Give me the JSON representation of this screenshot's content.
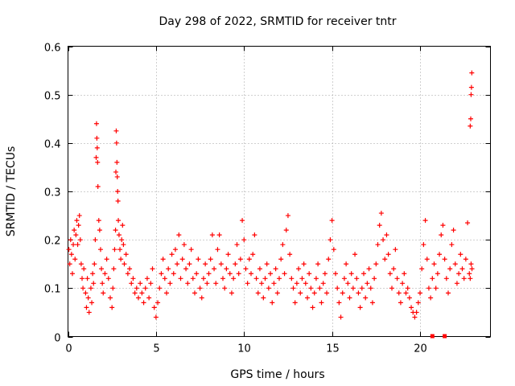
{
  "chart_data": {
    "type": "scatter",
    "title": "Day 298 of 2022, SRMTID for receiver tntr",
    "xlabel": "GPS time / hours",
    "ylabel": "SRMTID / TECUs",
    "xlim": [
      0,
      24
    ],
    "ylim": [
      0,
      0.6
    ],
    "xticks": [
      0,
      5,
      10,
      15,
      20
    ],
    "xtick_labels": [
      "0",
      "5",
      "10",
      "15",
      "20"
    ],
    "yticks": [
      0,
      0.1,
      0.2,
      0.3,
      0.4,
      0.5,
      0.6
    ],
    "ytick_labels": [
      "0",
      "0.1",
      "0.2",
      "0.3",
      "0.4",
      "0.5",
      "0.6"
    ],
    "grid": true,
    "marker": "+",
    "color": "#ff0000",
    "series": [
      {
        "name": "SRMTID",
        "points": [
          [
            0.05,
            0.18
          ],
          [
            0.1,
            0.15
          ],
          [
            0.15,
            0.2
          ],
          [
            0.2,
            0.17
          ],
          [
            0.25,
            0.13
          ],
          [
            0.3,
            0.19
          ],
          [
            0.35,
            0.22
          ],
          [
            0.4,
            0.16
          ],
          [
            0.45,
            0.21
          ],
          [
            0.5,
            0.24
          ],
          [
            0.55,
            0.19
          ],
          [
            0.6,
            0.23
          ],
          [
            0.65,
            0.25
          ],
          [
            0.7,
            0.2
          ],
          [
            0.75,
            0.15
          ],
          [
            0.8,
            0.12
          ],
          [
            0.85,
            0.1
          ],
          [
            0.9,
            0.14
          ],
          [
            1.0,
            0.09
          ],
          [
            1.05,
            0.06
          ],
          [
            1.1,
            0.12
          ],
          [
            1.15,
            0.08
          ],
          [
            1.2,
            0.05
          ],
          [
            1.3,
            0.1
          ],
          [
            1.35,
            0.07
          ],
          [
            1.4,
            0.13
          ],
          [
            1.45,
            0.11
          ],
          [
            1.5,
            0.15
          ],
          [
            1.55,
            0.2
          ],
          [
            1.6,
            0.37
          ],
          [
            1.62,
            0.44
          ],
          [
            1.64,
            0.41
          ],
          [
            1.66,
            0.39
          ],
          [
            1.68,
            0.36
          ],
          [
            1.7,
            0.31
          ],
          [
            1.75,
            0.24
          ],
          [
            1.8,
            0.22
          ],
          [
            1.85,
            0.18
          ],
          [
            1.9,
            0.14
          ],
          [
            1.95,
            0.11
          ],
          [
            2.0,
            0.09
          ],
          [
            2.1,
            0.13
          ],
          [
            2.2,
            0.16
          ],
          [
            2.3,
            0.12
          ],
          [
            2.4,
            0.08
          ],
          [
            2.5,
            0.06
          ],
          [
            2.55,
            0.1
          ],
          [
            2.6,
            0.14
          ],
          [
            2.65,
            0.18
          ],
          [
            2.7,
            0.22
          ],
          [
            2.72,
            0.34
          ],
          [
            2.74,
            0.425
          ],
          [
            2.76,
            0.4
          ],
          [
            2.78,
            0.36
          ],
          [
            2.8,
            0.33
          ],
          [
            2.82,
            0.3
          ],
          [
            2.84,
            0.28
          ],
          [
            2.86,
            0.24
          ],
          [
            2.9,
            0.21
          ],
          [
            2.95,
            0.18
          ],
          [
            3.0,
            0.16
          ],
          [
            3.05,
            0.2
          ],
          [
            3.1,
            0.23
          ],
          [
            3.15,
            0.19
          ],
          [
            3.2,
            0.15
          ],
          [
            3.3,
            0.17
          ],
          [
            3.4,
            0.13
          ],
          [
            3.5,
            0.14
          ],
          [
            3.6,
            0.11
          ],
          [
            3.7,
            0.12
          ],
          [
            3.8,
            0.09
          ],
          [
            3.9,
            0.1
          ],
          [
            4.0,
            0.08
          ],
          [
            4.1,
            0.11
          ],
          [
            4.2,
            0.09
          ],
          [
            4.3,
            0.07
          ],
          [
            4.4,
            0.1
          ],
          [
            4.5,
            0.12
          ],
          [
            4.6,
            0.08
          ],
          [
            4.7,
            0.11
          ],
          [
            4.8,
            0.14
          ],
          [
            4.9,
            0.06
          ],
          [
            5.0,
            0.04
          ],
          [
            5.1,
            0.07
          ],
          [
            5.2,
            0.1
          ],
          [
            5.3,
            0.13
          ],
          [
            5.4,
            0.16
          ],
          [
            5.5,
            0.12
          ],
          [
            5.6,
            0.09
          ],
          [
            5.7,
            0.14
          ],
          [
            5.8,
            0.11
          ],
          [
            5.9,
            0.17
          ],
          [
            6.0,
            0.13
          ],
          [
            6.1,
            0.18
          ],
          [
            6.2,
            0.15
          ],
          [
            6.3,
            0.21
          ],
          [
            6.4,
            0.12
          ],
          [
            6.5,
            0.16
          ],
          [
            6.6,
            0.19
          ],
          [
            6.7,
            0.14
          ],
          [
            6.8,
            0.11
          ],
          [
            6.9,
            0.15
          ],
          [
            7.0,
            0.18
          ],
          [
            7.1,
            0.12
          ],
          [
            7.2,
            0.09
          ],
          [
            7.3,
            0.13
          ],
          [
            7.4,
            0.16
          ],
          [
            7.5,
            0.1
          ],
          [
            7.6,
            0.08
          ],
          [
            7.7,
            0.12
          ],
          [
            7.8,
            0.15
          ],
          [
            7.9,
            0.11
          ],
          [
            8.0,
            0.13
          ],
          [
            8.1,
            0.16
          ],
          [
            8.2,
            0.21
          ],
          [
            8.3,
            0.14
          ],
          [
            8.4,
            0.11
          ],
          [
            8.5,
            0.18
          ],
          [
            8.6,
            0.21
          ],
          [
            8.7,
            0.15
          ],
          [
            8.8,
            0.12
          ],
          [
            8.9,
            0.1
          ],
          [
            9.0,
            0.14
          ],
          [
            9.1,
            0.17
          ],
          [
            9.2,
            0.13
          ],
          [
            9.3,
            0.09
          ],
          [
            9.4,
            0.12
          ],
          [
            9.5,
            0.15
          ],
          [
            9.6,
            0.19
          ],
          [
            9.7,
            0.13
          ],
          [
            9.8,
            0.16
          ],
          [
            9.9,
            0.24
          ],
          [
            10.0,
            0.2
          ],
          [
            10.1,
            0.14
          ],
          [
            10.2,
            0.11
          ],
          [
            10.3,
            0.16
          ],
          [
            10.4,
            0.13
          ],
          [
            10.5,
            0.17
          ],
          [
            10.6,
            0.21
          ],
          [
            10.7,
            0.12
          ],
          [
            10.8,
            0.09
          ],
          [
            10.9,
            0.14
          ],
          [
            11.0,
            0.11
          ],
          [
            11.1,
            0.08
          ],
          [
            11.2,
            0.12
          ],
          [
            11.3,
            0.15
          ],
          [
            11.4,
            0.1
          ],
          [
            11.5,
            0.13
          ],
          [
            11.6,
            0.07
          ],
          [
            11.7,
            0.11
          ],
          [
            11.8,
            0.14
          ],
          [
            11.9,
            0.09
          ],
          [
            12.0,
            0.12
          ],
          [
            12.1,
            0.16
          ],
          [
            12.2,
            0.19
          ],
          [
            12.3,
            0.13
          ],
          [
            12.4,
            0.22
          ],
          [
            12.5,
            0.25
          ],
          [
            12.6,
            0.17
          ],
          [
            12.7,
            0.12
          ],
          [
            12.8,
            0.1
          ],
          [
            12.9,
            0.07
          ],
          [
            13.0,
            0.11
          ],
          [
            13.1,
            0.14
          ],
          [
            13.2,
            0.09
          ],
          [
            13.3,
            0.12
          ],
          [
            13.4,
            0.15
          ],
          [
            13.5,
            0.11
          ],
          [
            13.6,
            0.08
          ],
          [
            13.7,
            0.13
          ],
          [
            13.8,
            0.1
          ],
          [
            13.9,
            0.06
          ],
          [
            14.0,
            0.09
          ],
          [
            14.1,
            0.12
          ],
          [
            14.2,
            0.15
          ],
          [
            14.3,
            0.1
          ],
          [
            14.4,
            0.07
          ],
          [
            14.5,
            0.11
          ],
          [
            14.6,
            0.13
          ],
          [
            14.7,
            0.09
          ],
          [
            14.8,
            0.16
          ],
          [
            14.9,
            0.2
          ],
          [
            15.0,
            0.24
          ],
          [
            15.1,
            0.18
          ],
          [
            15.2,
            0.13
          ],
          [
            15.3,
            0.1
          ],
          [
            15.4,
            0.07
          ],
          [
            15.5,
            0.04
          ],
          [
            15.6,
            0.09
          ],
          [
            15.7,
            0.12
          ],
          [
            15.8,
            0.15
          ],
          [
            15.9,
            0.11
          ],
          [
            16.0,
            0.08
          ],
          [
            16.1,
            0.13
          ],
          [
            16.2,
            0.1
          ],
          [
            16.3,
            0.17
          ],
          [
            16.4,
            0.12
          ],
          [
            16.5,
            0.09
          ],
          [
            16.6,
            0.06
          ],
          [
            16.7,
            0.1
          ],
          [
            16.8,
            0.13
          ],
          [
            16.9,
            0.08
          ],
          [
            17.0,
            0.11
          ],
          [
            17.1,
            0.14
          ],
          [
            17.2,
            0.1
          ],
          [
            17.3,
            0.07
          ],
          [
            17.4,
            0.12
          ],
          [
            17.5,
            0.15
          ],
          [
            17.6,
            0.19
          ],
          [
            17.7,
            0.23
          ],
          [
            17.8,
            0.255
          ],
          [
            17.9,
            0.2
          ],
          [
            18.0,
            0.16
          ],
          [
            18.1,
            0.21
          ],
          [
            18.2,
            0.17
          ],
          [
            18.3,
            0.13
          ],
          [
            18.4,
            0.1
          ],
          [
            18.5,
            0.14
          ],
          [
            18.6,
            0.18
          ],
          [
            18.7,
            0.12
          ],
          [
            18.8,
            0.09
          ],
          [
            18.9,
            0.07
          ],
          [
            19.0,
            0.11
          ],
          [
            19.1,
            0.13
          ],
          [
            19.2,
            0.09
          ],
          [
            19.3,
            0.1
          ],
          [
            19.4,
            0.08
          ],
          [
            19.5,
            0.06
          ],
          [
            19.6,
            0.05
          ],
          [
            19.7,
            0.04
          ],
          [
            19.8,
            0.05
          ],
          [
            19.9,
            0.07
          ],
          [
            20.0,
            0.09
          ],
          [
            20.1,
            0.14
          ],
          [
            20.2,
            0.19
          ],
          [
            20.3,
            0.24
          ],
          [
            20.4,
            0.16
          ],
          [
            20.5,
            0.1
          ],
          [
            20.6,
            0.08
          ],
          [
            20.7,
            0.12
          ],
          [
            20.8,
            0.15
          ],
          [
            20.9,
            0.1
          ],
          [
            21.0,
            0.13
          ],
          [
            21.1,
            0.17
          ],
          [
            21.2,
            0.21
          ],
          [
            21.3,
            0.23
          ],
          [
            21.4,
            0.16
          ],
          [
            21.5,
            0.12
          ],
          [
            21.6,
            0.09
          ],
          [
            21.7,
            0.14
          ],
          [
            21.8,
            0.19
          ],
          [
            21.9,
            0.22
          ],
          [
            22.0,
            0.15
          ],
          [
            22.1,
            0.11
          ],
          [
            22.2,
            0.13
          ],
          [
            22.3,
            0.17
          ],
          [
            22.4,
            0.14
          ],
          [
            22.5,
            0.12
          ],
          [
            22.6,
            0.16
          ],
          [
            22.7,
            0.235
          ],
          [
            22.8,
            0.13
          ],
          [
            22.85,
            0.12
          ],
          [
            22.9,
            0.15
          ],
          [
            22.95,
            0.14
          ],
          [
            22.85,
            0.435
          ],
          [
            22.88,
            0.45
          ],
          [
            22.9,
            0.5
          ],
          [
            22.92,
            0.515
          ],
          [
            22.94,
            0.545
          ]
        ]
      }
    ],
    "axis_markers": [
      20.7,
      21.4
    ]
  }
}
